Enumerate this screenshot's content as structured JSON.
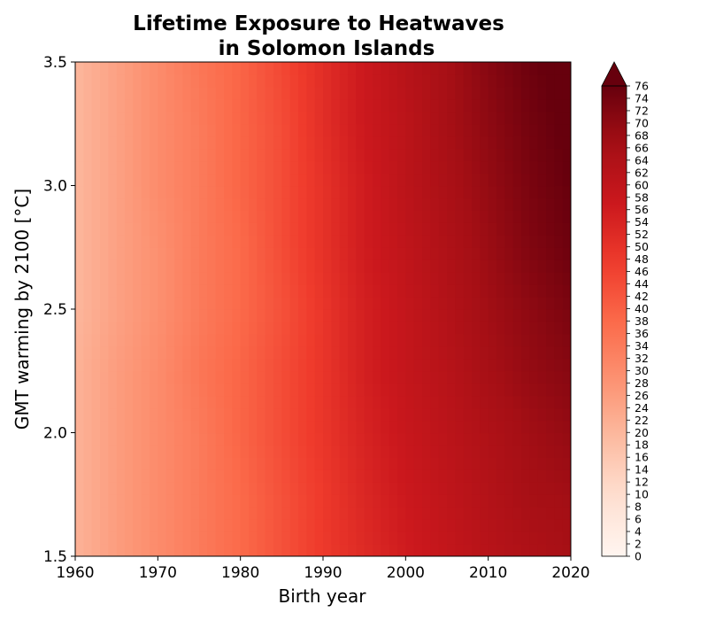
{
  "chart_data": {
    "type": "heatmap",
    "title_lines": [
      "Lifetime Exposure to Heatwaves",
      "in Solomon Islands"
    ],
    "xlabel": "Birth year",
    "ylabel": "GMT warming by 2100 [°C]",
    "xlim": [
      1960,
      2020
    ],
    "ylim": [
      1.5,
      3.5
    ],
    "xticks": [
      1960,
      1970,
      1980,
      1990,
      2000,
      2010,
      2020
    ],
    "xtick_labels": [
      "1960",
      "1970",
      "1980",
      "1990",
      "2000",
      "2010",
      "2020"
    ],
    "yticks": [
      1.5,
      2.0,
      2.5,
      3.0,
      3.5
    ],
    "ytick_labels": [
      "1.5",
      "2.0",
      "2.5",
      "3.0",
      "3.5"
    ],
    "colormap": "Reds",
    "colorbar": {
      "min": 0,
      "max": 76,
      "extend": "max",
      "ticks": [
        0,
        2,
        4,
        6,
        8,
        10,
        12,
        14,
        16,
        18,
        20,
        22,
        24,
        26,
        28,
        30,
        32,
        34,
        36,
        38,
        40,
        42,
        44,
        46,
        48,
        50,
        52,
        54,
        56,
        58,
        60,
        62,
        64,
        66,
        68,
        70,
        72,
        74,
        76
      ],
      "tick_labels": [
        "0",
        "2",
        "4",
        "6",
        "8",
        "10",
        "12",
        "14",
        "16",
        "18",
        "20",
        "22",
        "24",
        "26",
        "28",
        "30",
        "32",
        "34",
        "36",
        "38",
        "40",
        "42",
        "44",
        "46",
        "48",
        "50",
        "52",
        "54",
        "56",
        "58",
        "60",
        "62",
        "64",
        "66",
        "68",
        "70",
        "72",
        "74",
        "76"
      ]
    },
    "x": [
      1960,
      1965,
      1970,
      1975,
      1980,
      1985,
      1990,
      1995,
      2000,
      2005,
      2010,
      2015,
      2020
    ],
    "y": [
      1.5,
      1.75,
      2.0,
      2.25,
      2.5,
      2.75,
      3.0,
      3.25,
      3.5
    ],
    "z": [
      [
        21,
        26,
        30,
        34,
        38,
        43,
        48,
        52,
        56,
        59,
        62,
        64,
        66
      ],
      [
        21,
        26,
        30,
        34,
        38,
        43,
        48,
        53,
        57,
        60,
        63,
        66,
        67
      ],
      [
        21,
        26,
        30,
        34,
        39,
        44,
        49,
        54,
        58,
        61,
        64,
        67,
        69
      ],
      [
        21,
        26,
        30,
        35,
        39,
        44,
        49,
        55,
        59,
        62,
        66,
        69,
        71
      ],
      [
        20,
        25,
        29,
        34,
        38,
        43,
        49,
        55,
        59,
        63,
        67,
        70,
        73
      ],
      [
        20,
        25,
        29,
        34,
        38,
        44,
        50,
        56,
        60,
        64,
        68,
        72,
        75
      ],
      [
        20,
        25,
        30,
        34,
        39,
        44,
        50,
        56,
        61,
        65,
        69,
        73,
        76
      ],
      [
        20,
        25,
        30,
        34,
        39,
        44,
        51,
        57,
        61,
        66,
        70,
        74,
        77
      ],
      [
        20,
        25,
        30,
        35,
        39,
        45,
        51,
        57,
        62,
        66,
        71,
        75,
        78
      ]
    ]
  }
}
